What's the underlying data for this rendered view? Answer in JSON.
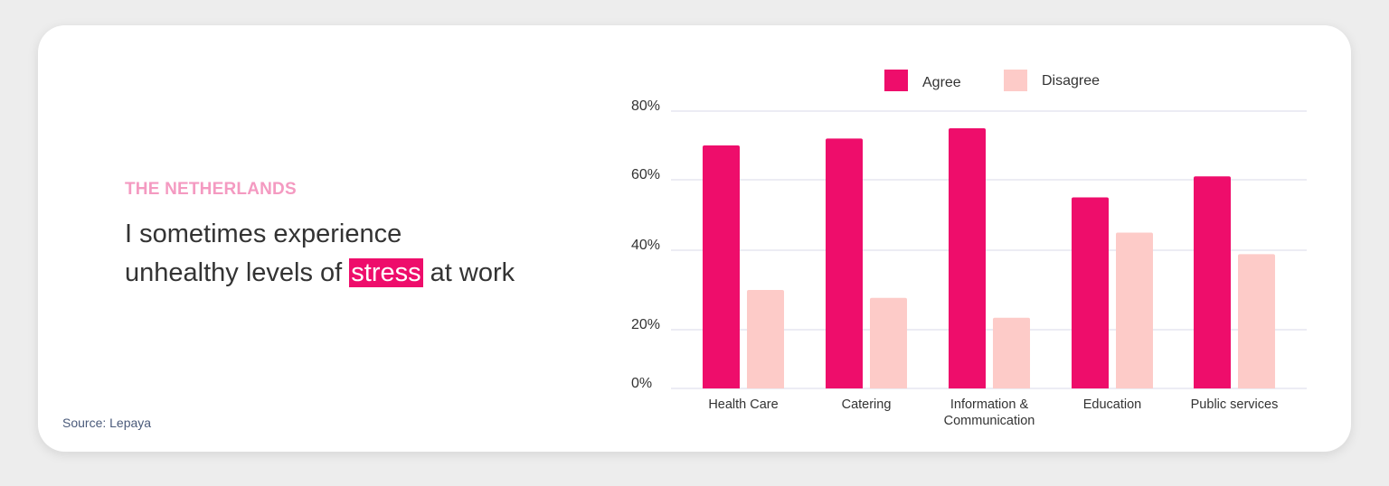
{
  "header": {
    "subtitle": "THE NETHERLANDS",
    "headline_part1": "I sometimes experience",
    "headline_part2": "unhealthy levels of ",
    "headline_highlight": "stress",
    "headline_part3": " at work"
  },
  "source": "Source: Lepaya",
  "colors": {
    "agree": "#ee0d6b",
    "disagree": "#fdcbc8",
    "grid": "#d8dae8",
    "subtitle": "#f49ac1"
  },
  "chart_data": {
    "type": "bar",
    "title": "",
    "xlabel": "",
    "ylabel": "",
    "categories": [
      [
        "Health Care"
      ],
      [
        "Catering"
      ],
      [
        "Information &",
        "Communication"
      ],
      [
        "Education"
      ],
      [
        "Public services"
      ]
    ],
    "series": [
      {
        "name": "Agree",
        "values": [
          70,
          72,
          75,
          55,
          61
        ]
      },
      {
        "name": "Disagree",
        "values": [
          30,
          28,
          23,
          45,
          39
        ]
      }
    ],
    "yticks": [
      {
        "value": 0,
        "label": "0%"
      },
      {
        "value": 20,
        "label": "20%"
      },
      {
        "value": 40,
        "label": "40%"
      },
      {
        "value": 60,
        "label": "60%"
      },
      {
        "value": 80,
        "label": "80%"
      }
    ],
    "ylim": [
      0,
      80
    ],
    "grid": true,
    "legend_position": "top"
  }
}
